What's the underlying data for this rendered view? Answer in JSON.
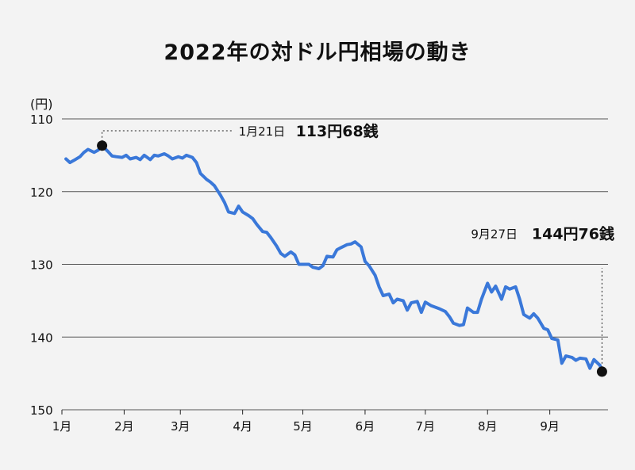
{
  "chart_data": {
    "type": "line",
    "title": "2022年の対ドル円相場の動き",
    "ylabel": "(円)",
    "xlabel": "",
    "y_axis_inverted": true,
    "ylim": [
      110,
      150
    ],
    "y_ticks": [
      "110",
      "120",
      "130",
      "140",
      "150"
    ],
    "x_ticks": [
      "1月",
      "2月",
      "3月",
      "4月",
      "5月",
      "6月",
      "7月",
      "8月",
      "9月"
    ],
    "grid": true,
    "line_color": "#3a78d9",
    "x": [
      "2022-01-03",
      "2022-01-05",
      "2022-01-07",
      "2022-01-10",
      "2022-01-12",
      "2022-01-14",
      "2022-01-17",
      "2022-01-19",
      "2022-01-21",
      "2022-01-24",
      "2022-01-26",
      "2022-01-28",
      "2022-01-31",
      "2022-02-02",
      "2022-02-04",
      "2022-02-07",
      "2022-02-09",
      "2022-02-11",
      "2022-02-14",
      "2022-02-16",
      "2022-02-18",
      "2022-02-21",
      "2022-02-23",
      "2022-02-25",
      "2022-02-28",
      "2022-03-02",
      "2022-03-04",
      "2022-03-07",
      "2022-03-09",
      "2022-03-11",
      "2022-03-14",
      "2022-03-16",
      "2022-03-18",
      "2022-03-21",
      "2022-03-23",
      "2022-03-25",
      "2022-03-28",
      "2022-03-30",
      "2022-04-01",
      "2022-04-04",
      "2022-04-06",
      "2022-04-08",
      "2022-04-11",
      "2022-04-13",
      "2022-04-15",
      "2022-04-18",
      "2022-04-20",
      "2022-04-22",
      "2022-04-25",
      "2022-04-27",
      "2022-04-29",
      "2022-05-02",
      "2022-05-04",
      "2022-05-06",
      "2022-05-09",
      "2022-05-11",
      "2022-05-13",
      "2022-05-16",
      "2022-05-18",
      "2022-05-20",
      "2022-05-23",
      "2022-05-25",
      "2022-05-27",
      "2022-05-30",
      "2022-06-01",
      "2022-06-03",
      "2022-06-06",
      "2022-06-08",
      "2022-06-10",
      "2022-06-13",
      "2022-06-15",
      "2022-06-17",
      "2022-06-20",
      "2022-06-22",
      "2022-06-24",
      "2022-06-27",
      "2022-06-29",
      "2022-07-01",
      "2022-07-04",
      "2022-07-06",
      "2022-07-08",
      "2022-07-11",
      "2022-07-13",
      "2022-07-15",
      "2022-07-18",
      "2022-07-20",
      "2022-07-22",
      "2022-07-25",
      "2022-07-27",
      "2022-07-29",
      "2022-08-01",
      "2022-08-03",
      "2022-08-05",
      "2022-08-08",
      "2022-08-10",
      "2022-08-12",
      "2022-08-15",
      "2022-08-17",
      "2022-08-19",
      "2022-08-22",
      "2022-08-24",
      "2022-08-26",
      "2022-08-29",
      "2022-08-31",
      "2022-09-02",
      "2022-09-05",
      "2022-09-07",
      "2022-09-09",
      "2022-09-12",
      "2022-09-14",
      "2022-09-16",
      "2022-09-19",
      "2022-09-21",
      "2022-09-23",
      "2022-09-26",
      "2022-09-27"
    ],
    "series": [
      {
        "values": [
          115.5,
          116.0,
          115.7,
          115.2,
          114.6,
          114.2,
          114.6,
          114.3,
          113.68,
          114.5,
          115.1,
          115.2,
          115.3,
          115.0,
          115.5,
          115.3,
          115.6,
          115.0,
          115.6,
          115.0,
          115.1,
          114.8,
          115.1,
          115.5,
          115.2,
          115.4,
          115.0,
          115.3,
          116.0,
          117.5,
          118.3,
          118.7,
          119.2,
          120.5,
          121.5,
          122.8,
          123.0,
          122.0,
          122.8,
          123.3,
          123.7,
          124.5,
          125.5,
          125.6,
          126.3,
          127.5,
          128.5,
          128.9,
          128.3,
          128.7,
          130.0,
          130.0,
          130.0,
          130.4,
          130.6,
          130.2,
          128.9,
          129.0,
          128.0,
          127.7,
          127.3,
          127.2,
          126.9,
          127.6,
          129.6,
          130.2,
          131.5,
          133.1,
          134.3,
          134.1,
          135.3,
          134.8,
          135.0,
          136.3,
          135.3,
          135.1,
          136.6,
          135.2,
          135.7,
          135.9,
          136.1,
          136.5,
          137.2,
          138.1,
          138.4,
          138.3,
          136.0,
          136.6,
          136.6,
          134.8,
          132.6,
          133.8,
          133.0,
          134.8,
          133.1,
          133.4,
          133.1,
          134.8,
          136.9,
          137.4,
          136.8,
          137.4,
          138.8,
          139.0,
          140.2,
          140.4,
          143.6,
          142.6,
          142.8,
          143.2,
          142.9,
          143.0,
          144.3,
          143.1,
          143.9,
          144.76
        ]
      }
    ],
    "annotations": [
      {
        "label_small": "1月21日",
        "label_big": "113円68銭",
        "x": "2022-01-21",
        "y": 113.68
      },
      {
        "label_small": "9月27日",
        "label_big": "144円76銭",
        "x": "2022-09-27",
        "y": 144.76
      }
    ]
  }
}
